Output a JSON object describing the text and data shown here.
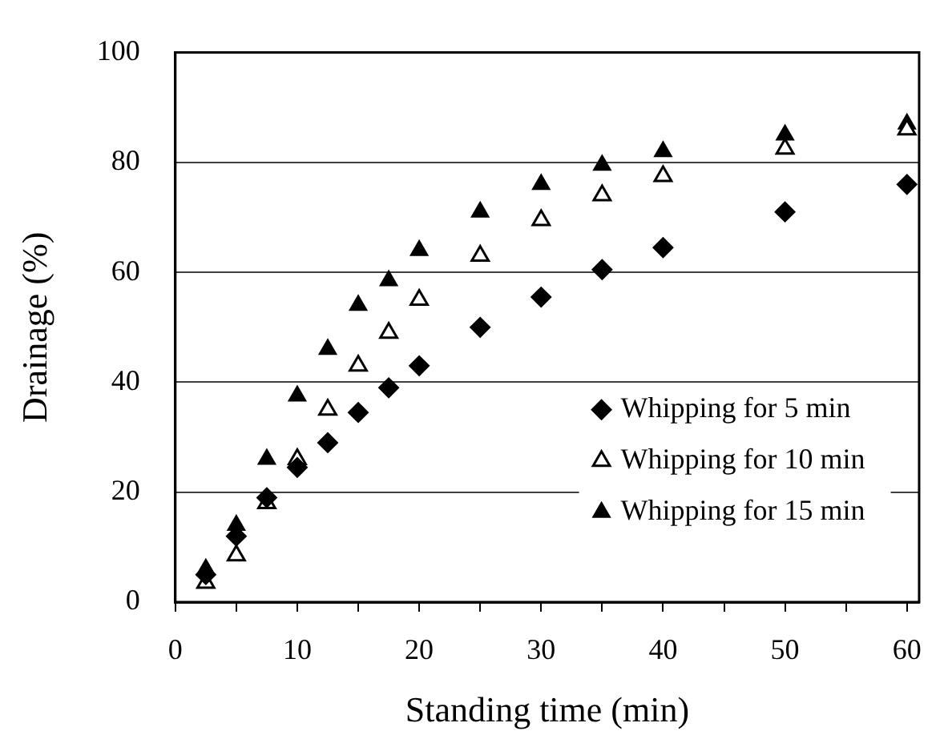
{
  "chart_data": {
    "type": "scatter",
    "xlabel": "Standing time (min)",
    "ylabel": "Drainage (%)",
    "xlim": [
      0,
      61
    ],
    "xticks": [
      0,
      {
        "value": 5,
        "label": null
      },
      10,
      {
        "value": 15,
        "label": null
      },
      20,
      {
        "value": 25,
        "label": null
      },
      30,
      {
        "value": 35,
        "label": null
      },
      40,
      {
        "value": 45,
        "label": null
      },
      50,
      {
        "value": 55,
        "label": null
      },
      60
    ],
    "ylim": [
      0,
      100
    ],
    "yticks": [
      0,
      20,
      40,
      60,
      80,
      100
    ],
    "grid": "y",
    "legend": "center right",
    "x": [
      2.5,
      5,
      7.5,
      10,
      12.5,
      15,
      17.5,
      20,
      25,
      30,
      35,
      40,
      50,
      60
    ],
    "series": [
      {
        "name": "Whipping for 5 min",
        "color": "#000000",
        "marker": "diamond",
        "values": [
          5,
          12,
          19,
          24.5,
          29,
          34.5,
          39,
          43,
          50,
          55.5,
          60.5,
          64.5,
          71,
          76
        ]
      },
      {
        "name": "Whipping for 10 min",
        "color": "#000000",
        "marker": "triangle",
        "values": [
          3.5,
          8.5,
          18,
          26,
          35,
          43,
          49,
          55,
          63,
          69.5,
          74,
          77.5,
          82.5,
          86
        ]
      },
      {
        "name": "Whipping for 15 min",
        "color": "#000000",
        "marker": "triangle",
        "values": [
          6,
          14,
          26,
          37.5,
          46,
          54,
          58.5,
          64,
          71,
          76,
          79.5,
          82,
          85,
          87
        ]
      }
    ]
  }
}
